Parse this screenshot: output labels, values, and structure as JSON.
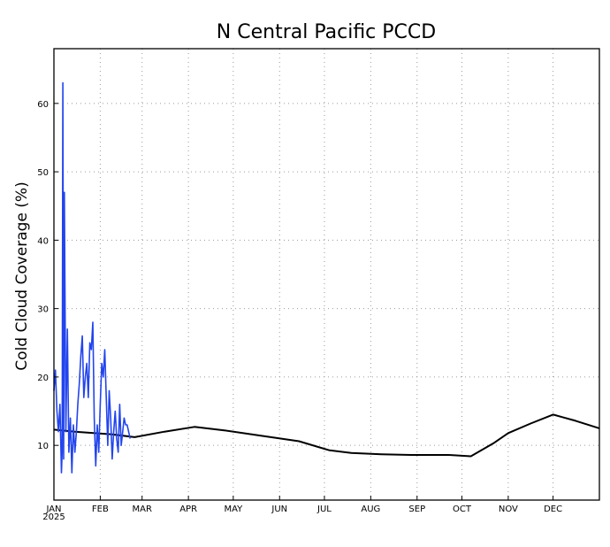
{
  "chart_data": {
    "type": "line",
    "title": "N Central Pacific PCCD",
    "xlabel": "",
    "ylabel": "Cold Cloud Coverage (%)",
    "year_label": "2025",
    "x_unit": "day of year 2025",
    "xlim": [
      1,
      366
    ],
    "ylim": [
      2,
      68
    ],
    "grid": true,
    "month_labels": [
      "JAN",
      "FEB",
      "MAR",
      "APR",
      "MAY",
      "JUN",
      "JUL",
      "AUG",
      "SEP",
      "OCT",
      "NOV",
      "DEC"
    ],
    "month_start_days": [
      1,
      32,
      60,
      91,
      121,
      152,
      182,
      213,
      244,
      274,
      305,
      335
    ],
    "y_ticks": [
      10,
      20,
      30,
      40,
      50,
      60
    ],
    "series": [
      {
        "name": "",
        "color": "#000000",
        "x": [
          1,
          15,
          40,
          55,
          75,
          95,
          115,
          140,
          165,
          185,
          200,
          220,
          240,
          255,
          265,
          280,
          295,
          305,
          320,
          335,
          350,
          366
        ],
        "values": [
          12.3,
          12.0,
          11.6,
          11.2,
          12.0,
          12.7,
          12.2,
          11.4,
          10.6,
          9.3,
          8.9,
          8.7,
          8.6,
          8.6,
          8.6,
          8.4,
          10.3,
          11.8,
          13.2,
          14.5,
          13.6,
          12.5
        ]
      },
      {
        "name": "",
        "color": "#2244ee",
        "x": [
          1,
          2,
          3,
          4,
          5,
          6,
          6.5,
          7,
          7.5,
          8,
          9,
          10,
          11,
          12,
          13,
          14,
          15,
          16,
          17,
          18,
          19,
          20,
          21,
          22,
          23,
          24,
          25,
          26,
          27,
          28,
          29,
          30,
          31,
          32,
          33,
          34,
          35,
          36,
          37,
          38,
          39,
          40,
          41,
          42,
          43,
          44,
          45,
          46,
          47,
          48,
          49,
          50,
          51,
          52
        ],
        "values": [
          18,
          21,
          15,
          12,
          16,
          6,
          9,
          63,
          8,
          47,
          12,
          27,
          9,
          14,
          6,
          13,
          9,
          12,
          16,
          19,
          23,
          26,
          17,
          20,
          22,
          17,
          25,
          24,
          28,
          14,
          7,
          13,
          9,
          16,
          22,
          20,
          24,
          17,
          10,
          18,
          14,
          8,
          12,
          15,
          11,
          9,
          16,
          10,
          12,
          14,
          13,
          13,
          12,
          11
        ]
      }
    ]
  }
}
